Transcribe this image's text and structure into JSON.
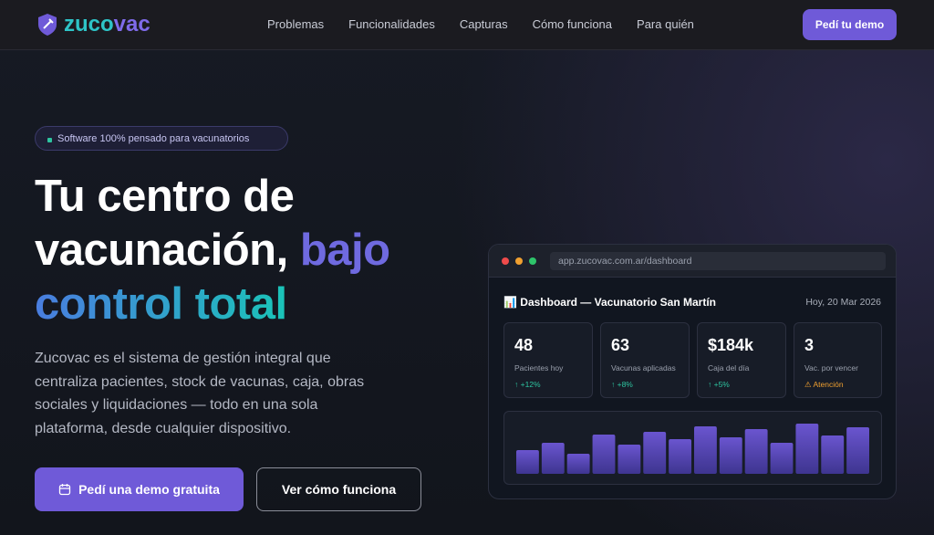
{
  "header": {
    "logo": {
      "part1": "zuco",
      "part2": "vac"
    },
    "nav": [
      "Problemas",
      "Funcionalidades",
      "Capturas",
      "Cómo funciona",
      "Para quién"
    ],
    "cta": "Pedí tu demo"
  },
  "hero": {
    "badge": "Software 100% pensado para vacunatorios",
    "title": {
      "line1": "Tu centro de",
      "line2a": "vacunación,",
      "line2b": "bajo",
      "line3": "control total"
    },
    "description": "Zucovac es el sistema de gestión integral que centraliza pacientes, stock de vacunas, caja, obras sociales y liquidaciones — todo en una sola plataforma, desde cualquier dispositivo.",
    "primary_button": "Pedí una demo gratuita",
    "secondary_button": "Ver cómo funciona"
  },
  "dashboard": {
    "url": "app.zucovac.com.ar/dashboard",
    "title": "📊 Dashboard — Vacunatorio San Martín",
    "date": "Hoy, 20 Mar 2026",
    "stats": [
      {
        "value": "48",
        "label": "Pacientes hoy",
        "change": "↑ +12%"
      },
      {
        "value": "63",
        "label": "Vacunas aplicadas",
        "change": "↑ +8%"
      },
      {
        "value": "$184k",
        "label": "Caja del día",
        "change": "↑ +5%"
      },
      {
        "value": "3",
        "label": "Vac. por vencer",
        "change": "⚠ Atención"
      }
    ],
    "chart": {
      "type": "bar",
      "values": [
        26,
        34,
        22,
        43,
        32,
        46,
        38,
        52,
        40,
        49,
        34,
        55,
        42,
        51
      ],
      "ylim": [
        0,
        60
      ]
    }
  }
}
